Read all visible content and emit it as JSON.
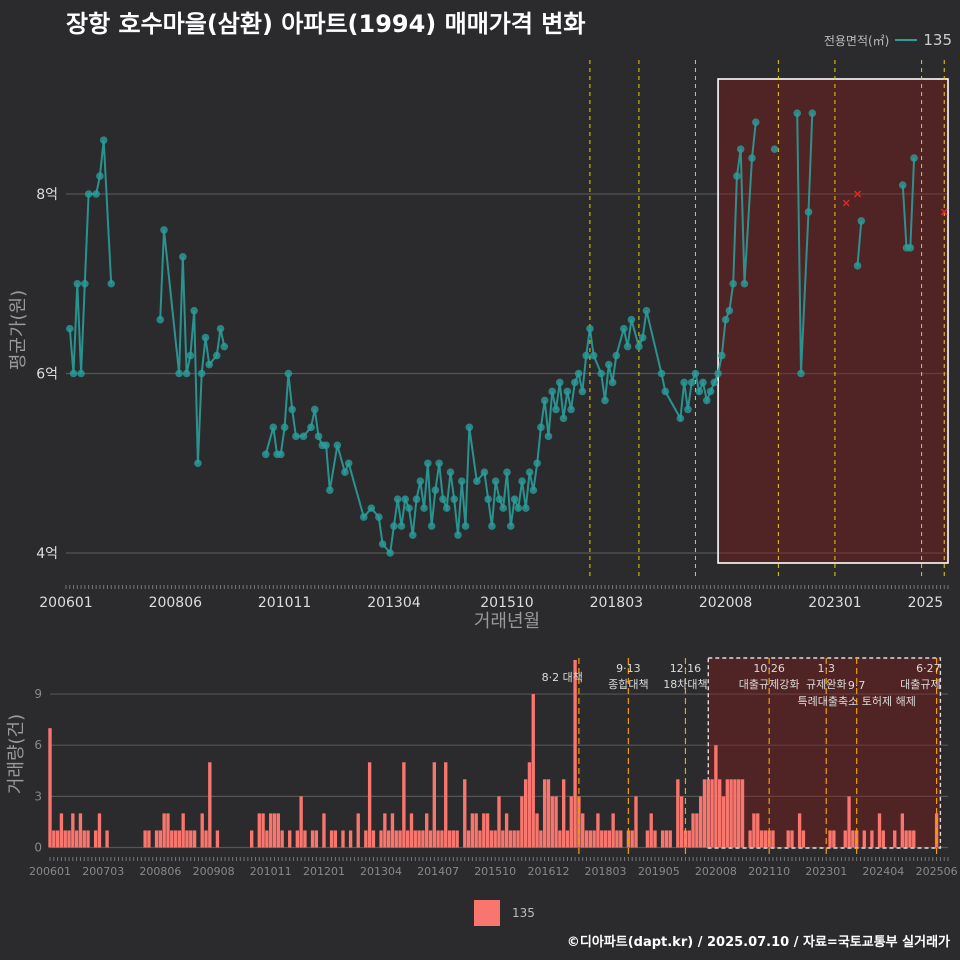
{
  "chart_data": [
    {
      "type": "line",
      "title": "장항 호수마을(삼환) 아파트(1994) 매매가격 변화",
      "xlabel": "거래년월",
      "ylabel": "평균가(원)",
      "x_ticks": [
        "200601",
        "200806",
        "201011",
        "201304",
        "201510",
        "201803",
        "202008",
        "202301",
        "2025"
      ],
      "y_ticks": [
        "4억",
        "6억",
        "8억"
      ],
      "ylim_eok": [
        3.8,
        9.6
      ],
      "legend_title": "전용면적(㎡)",
      "series": [
        {
          "name": "135",
          "color": "#2a9d9a",
          "points": [
            [
              "2006-02",
              6.5
            ],
            [
              "2006-03",
              6.0
            ],
            [
              "2006-04",
              7.0
            ],
            [
              "2006-05",
              6.0
            ],
            [
              "2006-06",
              7.0
            ],
            [
              "2006-07",
              8.0
            ],
            [
              "2006-09",
              8.0
            ],
            [
              "2006-10",
              8.2
            ],
            [
              "2006-11",
              8.6
            ],
            [
              "2007-01",
              7.0
            ],
            [
              "2008-02",
              6.6
            ],
            [
              "2008-03",
              7.6
            ],
            [
              "2008-07",
              6.0
            ],
            [
              "2008-08",
              7.3
            ],
            [
              "2008-09",
              6.0
            ],
            [
              "2008-10",
              6.2
            ],
            [
              "2008-11",
              6.7
            ],
            [
              "2008-12",
              5.0
            ],
            [
              "2009-01",
              6.0
            ],
            [
              "2009-02",
              6.4
            ],
            [
              "2009-03",
              6.1
            ],
            [
              "2009-05",
              6.2
            ],
            [
              "2009-06",
              6.5
            ],
            [
              "2009-07",
              6.3
            ],
            [
              "2010-06",
              5.1
            ],
            [
              "2010-08",
              5.4
            ],
            [
              "2010-09",
              5.1
            ],
            [
              "2010-10",
              5.1
            ],
            [
              "2010-11",
              5.4
            ],
            [
              "2010-12",
              6.0
            ],
            [
              "2011-01",
              5.6
            ],
            [
              "2011-02",
              5.3
            ],
            [
              "2011-04",
              5.3
            ],
            [
              "2011-06",
              5.4
            ],
            [
              "2011-07",
              5.6
            ],
            [
              "2011-08",
              5.3
            ],
            [
              "2011-09",
              5.2
            ],
            [
              "2011-10",
              5.2
            ],
            [
              "2011-11",
              4.7
            ],
            [
              "2012-01",
              5.2
            ],
            [
              "2012-03",
              4.9
            ],
            [
              "2012-04",
              5.0
            ],
            [
              "2012-08",
              4.4
            ],
            [
              "2012-10",
              4.5
            ],
            [
              "2012-12",
              4.4
            ],
            [
              "2013-01",
              4.1
            ],
            [
              "2013-03",
              4.0
            ],
            [
              "2013-04",
              4.3
            ],
            [
              "2013-05",
              4.6
            ],
            [
              "2013-06",
              4.3
            ],
            [
              "2013-07",
              4.6
            ],
            [
              "2013-08",
              4.5
            ],
            [
              "2013-09",
              4.2
            ],
            [
              "2013-10",
              4.6
            ],
            [
              "2013-11",
              4.8
            ],
            [
              "2013-12",
              4.5
            ],
            [
              "2014-01",
              5.0
            ],
            [
              "2014-02",
              4.3
            ],
            [
              "2014-03",
              4.7
            ],
            [
              "2014-04",
              5.0
            ],
            [
              "2014-05",
              4.6
            ],
            [
              "2014-06",
              4.5
            ],
            [
              "2014-07",
              4.9
            ],
            [
              "2014-08",
              4.6
            ],
            [
              "2014-09",
              4.2
            ],
            [
              "2014-10",
              4.8
            ],
            [
              "2014-11",
              4.3
            ],
            [
              "2014-12",
              5.4
            ],
            [
              "2015-02",
              4.8
            ],
            [
              "2015-04",
              4.9
            ],
            [
              "2015-05",
              4.6
            ],
            [
              "2015-06",
              4.3
            ],
            [
              "2015-07",
              4.8
            ],
            [
              "2015-08",
              4.6
            ],
            [
              "2015-09",
              4.5
            ],
            [
              "2015-10",
              4.9
            ],
            [
              "2015-11",
              4.3
            ],
            [
              "2015-12",
              4.6
            ],
            [
              "2016-01",
              4.5
            ],
            [
              "2016-02",
              4.8
            ],
            [
              "2016-03",
              4.5
            ],
            [
              "2016-04",
              4.9
            ],
            [
              "2016-05",
              4.7
            ],
            [
              "2016-06",
              5.0
            ],
            [
              "2016-07",
              5.4
            ],
            [
              "2016-08",
              5.7
            ],
            [
              "2016-09",
              5.3
            ],
            [
              "2016-10",
              5.8
            ],
            [
              "2016-11",
              5.6
            ],
            [
              "2016-12",
              5.9
            ],
            [
              "2017-01",
              5.5
            ],
            [
              "2017-02",
              5.8
            ],
            [
              "2017-03",
              5.6
            ],
            [
              "2017-04",
              5.9
            ],
            [
              "2017-05",
              6.0
            ],
            [
              "2017-06",
              5.8
            ],
            [
              "2017-07",
              6.2
            ],
            [
              "2017-08",
              6.5
            ],
            [
              "2017-09",
              6.2
            ],
            [
              "2017-11",
              6.0
            ],
            [
              "2017-12",
              5.7
            ],
            [
              "2018-01",
              6.1
            ],
            [
              "2018-02",
              5.9
            ],
            [
              "2018-03",
              6.2
            ],
            [
              "2018-05",
              6.5
            ],
            [
              "2018-06",
              6.3
            ],
            [
              "2018-07",
              6.6
            ],
            [
              "2018-09",
              6.3
            ],
            [
              "2018-10",
              6.4
            ],
            [
              "2018-11",
              6.7
            ],
            [
              "2019-03",
              6.0
            ],
            [
              "2019-04",
              5.8
            ],
            [
              "2019-08",
              5.5
            ],
            [
              "2019-09",
              5.9
            ],
            [
              "2019-10",
              5.6
            ],
            [
              "2019-11",
              5.9
            ],
            [
              "2019-12",
              6.0
            ],
            [
              "2020-01",
              5.8
            ],
            [
              "2020-02",
              5.9
            ],
            [
              "2020-03",
              5.7
            ],
            [
              "2020-04",
              5.8
            ],
            [
              "2020-05",
              5.9
            ],
            [
              "2020-06",
              6.0
            ],
            [
              "2020-07",
              6.2
            ],
            [
              "2020-08",
              6.6
            ],
            [
              "2020-09",
              6.7
            ],
            [
              "2020-10",
              7.0
            ],
            [
              "2020-11",
              8.2
            ],
            [
              "2020-12",
              8.5
            ],
            [
              "2021-01",
              7.0
            ],
            [
              "2021-03",
              8.4
            ],
            [
              "2021-04",
              8.8
            ],
            [
              "2021-09",
              8.5
            ],
            [
              "2022-03",
              8.9
            ],
            [
              "2022-04",
              6.0
            ],
            [
              "2022-06",
              7.8
            ],
            [
              "2022-07",
              8.9
            ],
            [
              "2023-07",
              7.2
            ],
            [
              "2023-08",
              7.7
            ],
            [
              "2024-07",
              8.1
            ],
            [
              "2024-08",
              7.4
            ],
            [
              "2024-09",
              7.4
            ],
            [
              "2024-10",
              8.4
            ]
          ],
          "cancelled_points": [
            [
              "2023-04",
              7.9
            ],
            [
              "2023-07",
              8.0
            ],
            [
              "2025-06",
              7.8
            ]
          ]
        }
      ],
      "policy_lines": [
        "2017-08",
        "2018-09",
        "2019-12",
        "2021-10",
        "2023-01",
        "2024-12",
        "2025-06"
      ],
      "highlight_range": [
        "2020-06",
        "2025-07"
      ]
    },
    {
      "type": "bar",
      "ylabel": "거래량(건)",
      "x_ticks": [
        "200601",
        "200703",
        "200806",
        "200908",
        "201011",
        "201201",
        "201304",
        "201407",
        "201510",
        "201612",
        "201803",
        "201905",
        "202008",
        "202110",
        "202301",
        "202404",
        "202506"
      ],
      "y_ticks": [
        "0",
        "3",
        "6",
        "9"
      ],
      "ylim": [
        0,
        11
      ],
      "series_name": "135",
      "color": "#f8766d",
      "annotations": [
        {
          "date": "2017-08",
          "label": "8·2 대책"
        },
        {
          "date": "2018-09",
          "label": "9·13"
        },
        {
          "date": "2018-09",
          "label": "종합대책"
        },
        {
          "date": "2019-12",
          "label": "12·16"
        },
        {
          "date": "2019-12",
          "label": "18차대책"
        },
        {
          "date": "2021-10",
          "label": "10·26"
        },
        {
          "date": "2021-10",
          "label": "대출규제강화"
        },
        {
          "date": "2023-01",
          "label": "1·3"
        },
        {
          "date": "2023-01",
          "label": "규제완화"
        },
        {
          "date": "2023-09",
          "label": "9·7"
        },
        {
          "date": "2023-09",
          "label": "특례대출축소 토허제 해제"
        },
        {
          "date": "2025-06",
          "label": "6·27"
        },
        {
          "date": "2025-06",
          "label": "대출규제"
        }
      ],
      "volumes": {
        "2006-01": 7,
        "2006-02": 1,
        "2006-03": 1,
        "2006-04": 2,
        "2006-05": 1,
        "2006-06": 1,
        "2006-07": 2,
        "2006-08": 1,
        "2006-09": 2,
        "2006-10": 1,
        "2006-11": 1,
        "2007-01": 1,
        "2007-02": 2,
        "2007-04": 1,
        "2008-02": 1,
        "2008-03": 1,
        "2008-05": 1,
        "2008-06": 1,
        "2008-07": 2,
        "2008-08": 2,
        "2008-09": 1,
        "2008-10": 1,
        "2008-11": 1,
        "2008-12": 2,
        "2009-01": 1,
        "2009-02": 1,
        "2009-03": 1,
        "2009-05": 2,
        "2009-06": 1,
        "2009-07": 5,
        "2009-09": 1,
        "2010-06": 1,
        "2010-08": 2,
        "2010-09": 2,
        "2010-10": 1,
        "2010-11": 2,
        "2010-12": 2,
        "2011-01": 2,
        "2011-02": 1,
        "2011-04": 1,
        "2011-06": 1,
        "2011-07": 3,
        "2011-08": 1,
        "2011-10": 1,
        "2011-11": 1,
        "2012-01": 2,
        "2012-03": 1,
        "2012-04": 1,
        "2012-06": 1,
        "2012-08": 1,
        "2012-10": 2,
        "2012-12": 1,
        "2013-01": 5,
        "2013-02": 1,
        "2013-04": 1,
        "2013-05": 2,
        "2013-06": 1,
        "2013-07": 2,
        "2013-08": 1,
        "2013-09": 1,
        "2013-10": 5,
        "2013-11": 1,
        "2013-12": 2,
        "2014-01": 1,
        "2014-02": 1,
        "2014-03": 1,
        "2014-04": 2,
        "2014-05": 1,
        "2014-06": 5,
        "2014-07": 1,
        "2014-08": 1,
        "2014-09": 5,
        "2014-10": 1,
        "2014-11": 1,
        "2014-12": 1,
        "2015-02": 4,
        "2015-03": 1,
        "2015-04": 2,
        "2015-05": 2,
        "2015-06": 1,
        "2015-07": 2,
        "2015-08": 2,
        "2015-09": 1,
        "2015-10": 1,
        "2015-11": 3,
        "2015-12": 1,
        "2016-01": 2,
        "2016-02": 1,
        "2016-03": 1,
        "2016-04": 1,
        "2016-05": 3,
        "2016-06": 4,
        "2016-07": 5,
        "2016-08": 9,
        "2016-09": 2,
        "2016-10": 1,
        "2016-11": 4,
        "2016-12": 4,
        "2017-01": 3,
        "2017-02": 3,
        "2017-03": 1,
        "2017-04": 4,
        "2017-05": 1,
        "2017-06": 3,
        "2017-07": 11,
        "2017-08": 3,
        "2017-09": 2,
        "2017-10": 1,
        "2017-11": 1,
        "2017-12": 1,
        "2018-01": 2,
        "2018-02": 1,
        "2018-03": 1,
        "2018-04": 1,
        "2018-05": 2,
        "2018-06": 1,
        "2018-07": 1,
        "2018-09": 1,
        "2018-10": 1,
        "2018-11": 3,
        "2019-02": 1,
        "2019-03": 2,
        "2019-04": 1,
        "2019-06": 1,
        "2019-07": 1,
        "2019-08": 1,
        "2019-10": 4,
        "2019-11": 3,
        "2019-12": 1,
        "2020-01": 1,
        "2020-02": 2,
        "2020-03": 2,
        "2020-04": 3,
        "2020-05": 4,
        "2020-06": 4,
        "2020-07": 4,
        "2020-08": 6,
        "2020-09": 4,
        "2020-10": 3,
        "2020-11": 4,
        "2020-12": 4,
        "2021-01": 4,
        "2021-02": 4,
        "2021-03": 4,
        "2021-05": 1,
        "2021-06": 2,
        "2021-07": 2,
        "2021-08": 1,
        "2021-09": 1,
        "2021-10": 1,
        "2021-11": 1,
        "2022-03": 1,
        "2022-04": 1,
        "2022-06": 2,
        "2022-07": 1,
        "2023-02": 1,
        "2023-03": 1,
        "2023-06": 1,
        "2023-07": 3,
        "2023-08": 1,
        "2023-09": 1,
        "2023-11": 1,
        "2024-01": 1,
        "2024-03": 2,
        "2024-04": 1,
        "2024-07": 1,
        "2024-09": 2,
        "2024-10": 1,
        "2024-11": 1,
        "2024-12": 1,
        "2025-06": 2
      }
    }
  ],
  "legend": {
    "title": "전용면적(㎡)",
    "value": "135"
  },
  "footer": "©디아파트(dapt.kr) / 2025.07.10 / 자료=국토교통부 실거래가"
}
